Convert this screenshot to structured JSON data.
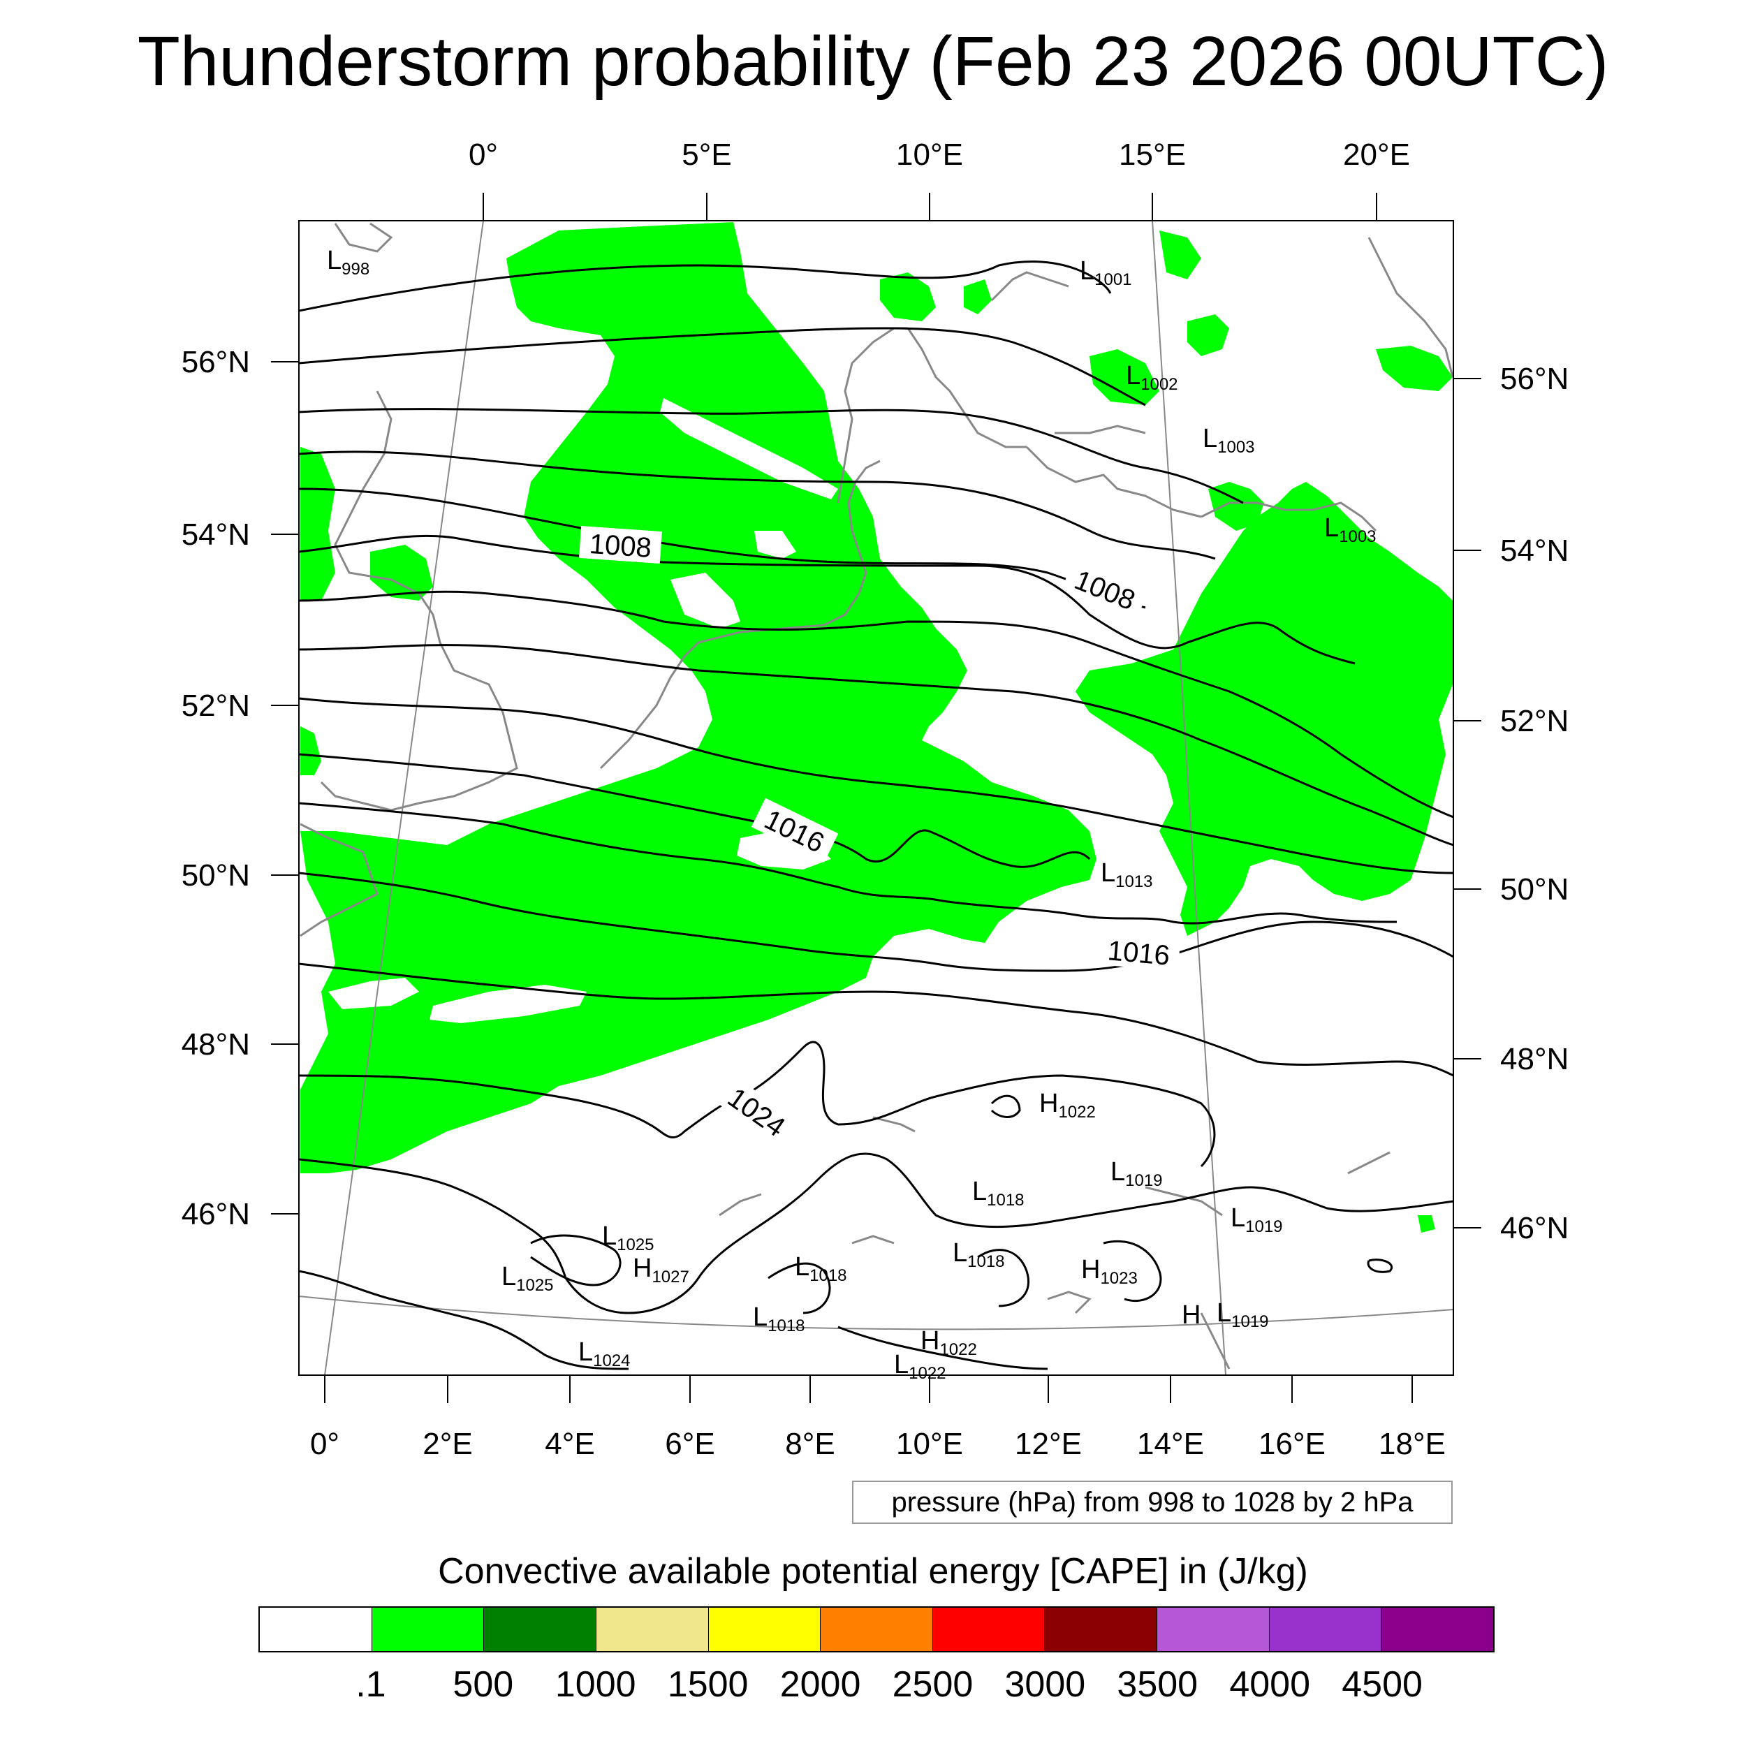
{
  "title": "Thunderstorm probability (Feb 23 2026 00UTC)",
  "map": {
    "top_lon_labels": [
      "0°",
      "5°E",
      "10°E",
      "15°E",
      "20°E"
    ],
    "bottom_lon_labels": [
      "0°",
      "2°E",
      "4°E",
      "6°E",
      "8°E",
      "10°E",
      "12°E",
      "14°E",
      "16°E",
      "18°E"
    ],
    "left_lat_labels": [
      "56°N",
      "54°N",
      "52°N",
      "50°N",
      "48°N",
      "46°N"
    ],
    "right_lat_labels": [
      "56°N",
      "54°N",
      "52°N",
      "50°N",
      "48°N",
      "46°N"
    ],
    "contour_labels": [
      "1008",
      "1008",
      "1016",
      "1016",
      "1024"
    ],
    "pressure_centers": [
      {
        "type": "L",
        "value": "998"
      },
      {
        "type": "L",
        "value": "1001"
      },
      {
        "type": "L",
        "value": "1002"
      },
      {
        "type": "L",
        "value": "1003"
      },
      {
        "type": "L",
        "value": "1003"
      },
      {
        "type": "L",
        "value": "1013"
      },
      {
        "type": "H",
        "value": "1022"
      },
      {
        "type": "L",
        "value": "1019"
      },
      {
        "type": "L",
        "value": "1018"
      },
      {
        "type": "L",
        "value": "1019"
      },
      {
        "type": "L",
        "value": "1025"
      },
      {
        "type": "H",
        "value": "1027"
      },
      {
        "type": "L",
        "value": "1025"
      },
      {
        "type": "L",
        "value": "1018"
      },
      {
        "type": "L",
        "value": "1018"
      },
      {
        "type": "H",
        "value": "1023"
      },
      {
        "type": "L",
        "value": "1018"
      },
      {
        "type": "H",
        "value": ""
      },
      {
        "type": "L",
        "value": "1019"
      },
      {
        "type": "L",
        "value": "1024"
      },
      {
        "type": "H",
        "value": "1022"
      },
      {
        "type": "L",
        "value": "1022"
      }
    ],
    "cape_fill_color": "#00ff00",
    "contour_color": "#000000",
    "coastline_color": "#888888"
  },
  "info_box": "pressure (hPa) from 998 to 1028 by 2 hPa",
  "colorbar": {
    "title": "Convective available potential energy [CAPE] in (J/kg)",
    "colors": [
      "#ffffff",
      "#00ff00",
      "#008000",
      "#f0e68c",
      "#ffff00",
      "#ff8000",
      "#ff0000",
      "#8b0000",
      "#b557d6",
      "#9932cc",
      "#8b008b"
    ],
    "labels": [
      ".1",
      "500",
      "1000",
      "1500",
      "2000",
      "2500",
      "3000",
      "3500",
      "4000",
      "4500"
    ]
  }
}
